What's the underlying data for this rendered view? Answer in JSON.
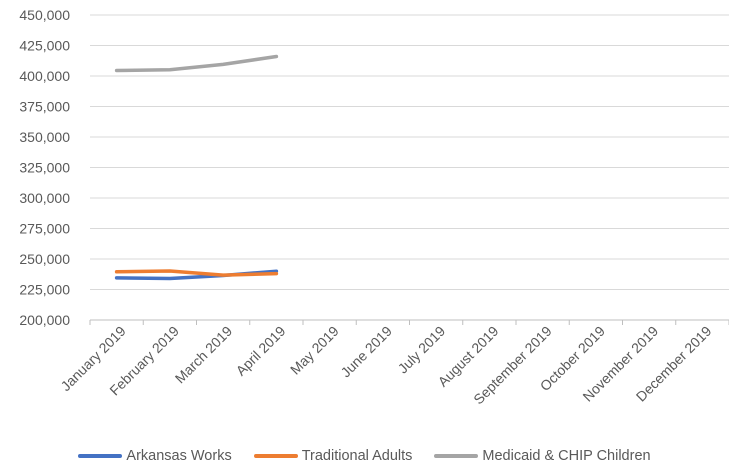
{
  "chart_data": {
    "type": "line",
    "title": "",
    "xlabel": "",
    "ylabel": "",
    "ylim": [
      200000,
      450000
    ],
    "yticks": [
      "200,000",
      "225,000",
      "250,000",
      "275,000",
      "300,000",
      "325,000",
      "350,000",
      "375,000",
      "400,000",
      "425,000",
      "450,000"
    ],
    "categories": [
      "January 2019",
      "February 2019",
      "March 2019",
      "April 2019",
      "May 2019",
      "June 2019",
      "July 2019",
      "August 2019",
      "September 2019",
      "October 2019",
      "November 2019",
      "December 2019"
    ],
    "grid": true,
    "legend_position": "bottom",
    "series": [
      {
        "name": "Arkansas Works",
        "color": "#4472C4",
        "values": [
          234500,
          234000,
          236500,
          240000,
          null,
          null,
          null,
          null,
          null,
          null,
          null,
          null
        ]
      },
      {
        "name": "Traditional Adults",
        "color": "#ED7D31",
        "values": [
          239500,
          240200,
          236800,
          238000,
          null,
          null,
          null,
          null,
          null,
          null,
          null,
          null
        ]
      },
      {
        "name": "Medicaid & CHIP Children",
        "color": "#A5A5A5",
        "values": [
          404500,
          405200,
          409500,
          416000,
          null,
          null,
          null,
          null,
          null,
          null,
          null,
          null
        ]
      }
    ]
  }
}
